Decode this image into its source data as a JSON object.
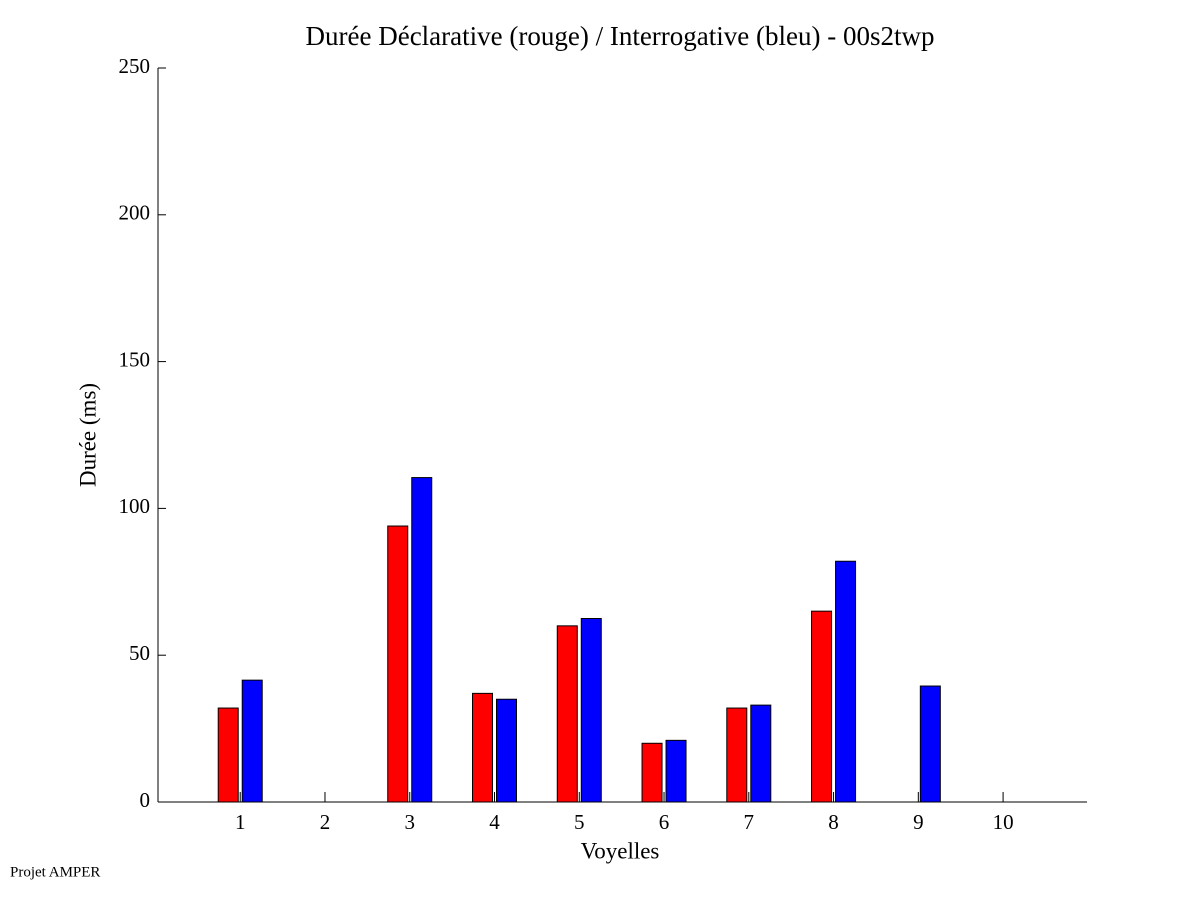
{
  "chart_data": {
    "type": "bar",
    "title": "Durée Déclarative (rouge) / Interrogative (bleu) - 00s2twp",
    "x_label": "Voyelles",
    "y_label": "Durée (ms)",
    "source": "Projet AMPER",
    "x": [
      1,
      2,
      3,
      4,
      5,
      6,
      7,
      8,
      9,
      10
    ],
    "series": [
      {
        "color": "#ff0000",
        "values": [
          32,
          null,
          94,
          37,
          60,
          20,
          32,
          65,
          null,
          null
        ]
      },
      {
        "color": "#0000ff",
        "values": [
          41.5,
          null,
          110.5,
          35,
          62.5,
          21,
          33,
          82,
          39.5,
          null
        ]
      }
    ],
    "xlim": [
      0.03,
      10.99
    ],
    "xticks": [
      1,
      2,
      3,
      4,
      5,
      6,
      7,
      8,
      9,
      10
    ],
    "ylim": [
      0,
      250
    ],
    "yticks": [
      0,
      50,
      100,
      150,
      200,
      250
    ]
  }
}
